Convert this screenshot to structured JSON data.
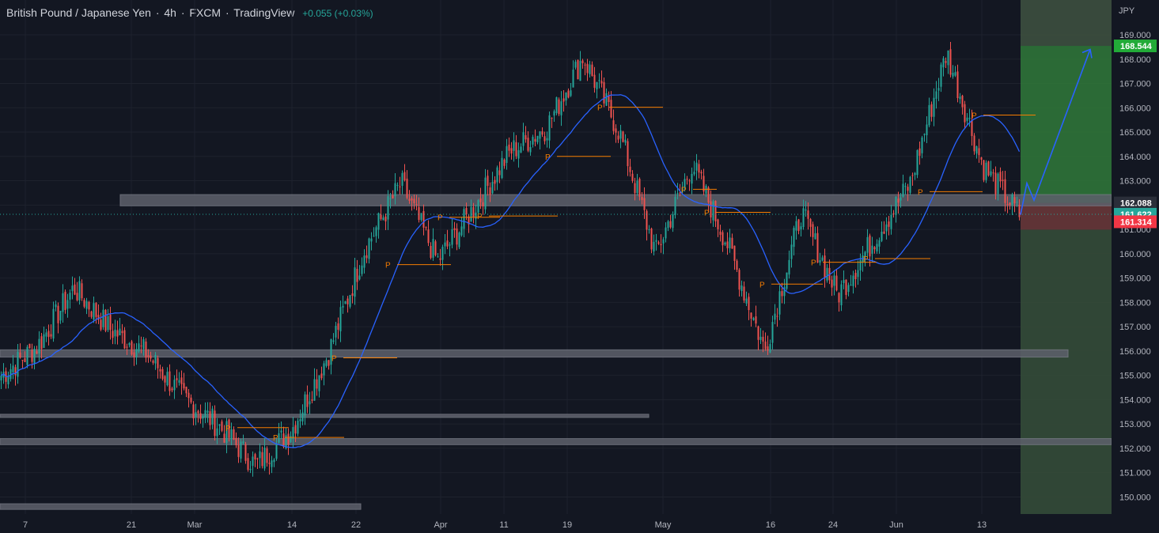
{
  "header": {
    "symbol": "British Pound / Japanese Yen",
    "interval": "4h",
    "exchange": "FXCM",
    "source": "TradingView",
    "change": "+0.055 (+0.03%)"
  },
  "chart_data": {
    "type": "candlestick",
    "currency": "JPY",
    "ylim": [
      149.2,
      170.5
    ],
    "yticks": [
      150,
      151,
      152,
      153,
      154,
      155,
      156,
      157,
      158,
      159,
      160,
      161,
      162,
      163,
      164,
      165,
      166,
      167,
      168,
      169
    ],
    "xticks": [
      "7",
      "21",
      "Mar",
      "14",
      "22",
      "Apr",
      "11",
      "19",
      "May",
      "16",
      "24",
      "Jun",
      "13"
    ],
    "price_labels": [
      {
        "name": "target",
        "value": 168.544,
        "text": "168.544",
        "color": "#22ab38"
      },
      {
        "name": "entry",
        "value": 162.088,
        "text": "162.088",
        "color": "#2a2e39"
      },
      {
        "name": "current",
        "value": 161.622,
        "text": "161.622",
        "color": "#26a69a"
      },
      {
        "name": "stop",
        "value": 161.314,
        "text": "161.314",
        "color": "#f23645"
      }
    ],
    "price_path": [
      {
        "t": "7",
        "price": 155.0
      },
      {
        "t": "7+",
        "price": 156.2
      },
      {
        "t": "8",
        "price": 158.6
      },
      {
        "t": "21",
        "price": 156.9
      },
      {
        "t": "Mar-",
        "price": 155.9
      },
      {
        "t": "Mar",
        "price": 154.1
      },
      {
        "t": "Mar+",
        "price": 152.9
      },
      {
        "t": "14-",
        "price": 151.3
      },
      {
        "t": "14",
        "price": 152.8
      },
      {
        "t": "22",
        "price": 155.9
      },
      {
        "t": "22+",
        "price": 160.2
      },
      {
        "t": "Apr-",
        "price": 162.9
      },
      {
        "t": "Apr",
        "price": 159.7
      },
      {
        "t": "11",
        "price": 161.9
      },
      {
        "t": "11+",
        "price": 164.2
      },
      {
        "t": "19-",
        "price": 165.2
      },
      {
        "t": "19",
        "price": 168.1
      },
      {
        "t": "19+",
        "price": 165.0
      },
      {
        "t": "May-",
        "price": 160.0
      },
      {
        "t": "May",
        "price": 163.7
      },
      {
        "t": "May+",
        "price": 160.3
      },
      {
        "t": "16-",
        "price": 156.0
      },
      {
        "t": "16",
        "price": 161.7
      },
      {
        "t": "24-",
        "price": 158.3
      },
      {
        "t": "24",
        "price": 160.6
      },
      {
        "t": "Jun",
        "price": 162.9
      },
      {
        "t": "13-",
        "price": 168.3
      },
      {
        "t": "13",
        "price": 163.6
      },
      {
        "t": "13+",
        "price": 161.6
      }
    ],
    "moving_average": {
      "name": "MA",
      "color": "#2962ff"
    },
    "series_colors": {
      "up": "#26a69a",
      "down": "#ef5350"
    },
    "support_resistance_zones": [
      {
        "name": "zone-162",
        "from": 161.97,
        "to": 162.43
      },
      {
        "name": "zone-156",
        "from": 155.75,
        "to": 156.05
      },
      {
        "name": "zone-152",
        "from": 152.15,
        "to": 152.4
      },
      {
        "name": "line-153",
        "from": 153.27,
        "to": 153.4
      },
      {
        "name": "zone-150",
        "from": 149.49,
        "to": 149.72
      }
    ],
    "pivot_label": "P",
    "pivots": [
      {
        "price": 155.72
      },
      {
        "price": 152.85
      },
      {
        "price": 152.45
      },
      {
        "price": 159.55
      },
      {
        "price": 161.5
      },
      {
        "price": 161.55
      },
      {
        "price": 164.0
      },
      {
        "price": 166.02
      },
      {
        "price": 162.65
      },
      {
        "price": 161.7
      },
      {
        "price": 158.75
      },
      {
        "price": 159.65
      },
      {
        "price": 159.8
      },
      {
        "price": 162.55
      },
      {
        "price": 165.7
      }
    ],
    "position": {
      "type": "long",
      "entry": 162.088,
      "target": 168.544,
      "stop": 161.314
    }
  }
}
